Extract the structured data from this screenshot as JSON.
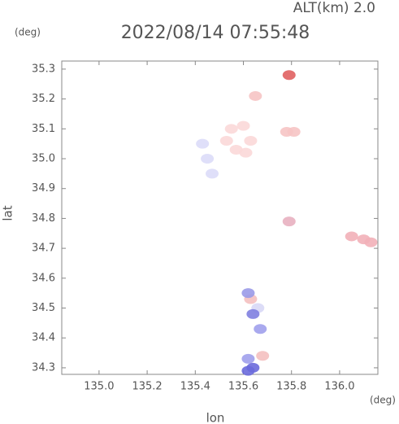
{
  "chart_data": {
    "type": "scatter",
    "title": "2022/08/14 07:55:48",
    "subtitle": "ALT(km) 2.0",
    "x_unit": "(deg)",
    "y_unit": "(deg)",
    "x_label": "lon",
    "y_label": "lat",
    "x": [
      135.55,
      135.6,
      135.63,
      135.57,
      135.53,
      135.61,
      135.78,
      135.81,
      135.79,
      135.65,
      136.05,
      136.1,
      136.13,
      135.63,
      135.66,
      135.68,
      135.79,
      135.43,
      135.45,
      135.47,
      135.62,
      135.64,
      135.62,
      135.64,
      135.62,
      135.67
    ],
    "y": [
      35.1,
      35.11,
      35.06,
      35.03,
      35.06,
      35.02,
      35.09,
      35.09,
      35.28,
      35.21,
      34.74,
      34.73,
      34.72,
      34.53,
      34.5,
      34.34,
      34.79,
      35.05,
      35.0,
      34.95,
      34.55,
      34.48,
      34.33,
      34.3,
      34.29,
      34.43
    ],
    "colors": [
      "#fbd8d8",
      "#fbd8d8",
      "#fbd8d8",
      "#fbd8d8",
      "#fbd8d8",
      "#fbd8d8",
      "#f6c4c4",
      "#f6c4c4",
      "#e06060",
      "#f6c4c4",
      "#f2b0b8",
      "#f2b0b8",
      "#f2b0b8",
      "#f4c0c0",
      "#d8d8f6",
      "#f4c0c0",
      "#e8b0c0",
      "#dcdcf8",
      "#dcdcf8",
      "#dcdcf8",
      "#9a9ae8",
      "#8080e0",
      "#a0a0ec",
      "#6a6adc",
      "#6a6adc",
      "#a0a0ec"
    ],
    "xlim": [
      134.845,
      136.159
    ],
    "ylim": [
      34.278,
      35.327
    ],
    "xticks": [
      {
        "value": 135.0,
        "label": "135.0"
      },
      135.2,
      135.4,
      135.6,
      135.8,
      {
        "value": 136.0,
        "label": "136.0"
      }
    ],
    "yticks": [
      34.3,
      34.4,
      34.5,
      34.6,
      34.7,
      34.8,
      34.9,
      {
        "value": 35.0,
        "label": "35.0"
      },
      35.1,
      35.2,
      35.3
    ]
  }
}
